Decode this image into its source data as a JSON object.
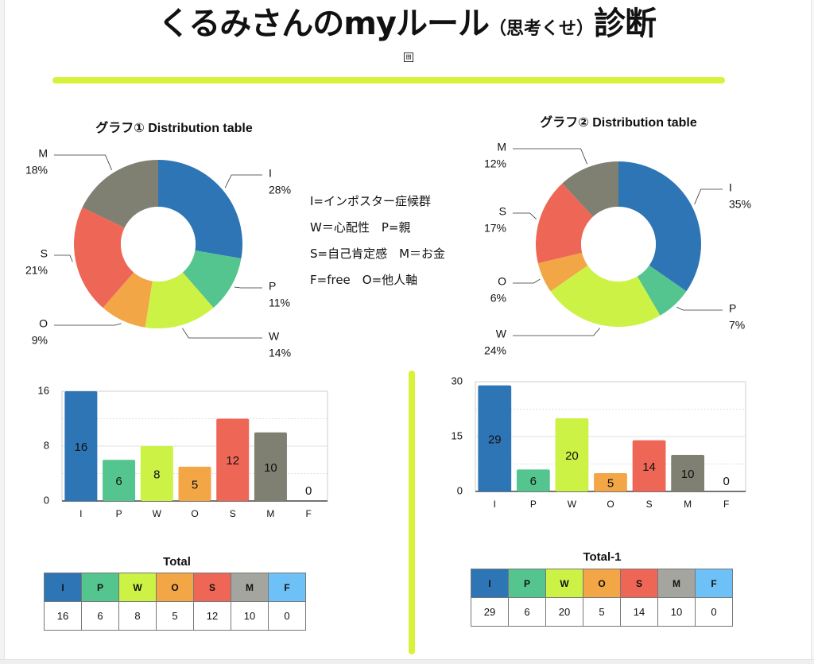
{
  "title": {
    "main": "くるみさんのmyルール",
    "paren": "（思考くせ）",
    "suffix": "診断"
  },
  "expand_icon": "⊞",
  "legend_lines": [
    "I=インポスター症候群",
    "W＝心配性　P=親",
    "S=自己肯定感　M＝お金",
    "F=free　O=他人軸"
  ],
  "colors": {
    "I": "#2e75b6",
    "P": "#55c58f",
    "W": "#ccf246",
    "O": "#f2a646",
    "S": "#ee6756",
    "M": "#7f7f72",
    "F": "#6ec1f7",
    "accent": "#d8f23a"
  },
  "chart_data": [
    {
      "type": "pie",
      "title": "グラフ① Distribution table",
      "slices": [
        {
          "label": "I",
          "value": 28,
          "pct": "28%"
        },
        {
          "label": "P",
          "value": 11,
          "pct": "11%"
        },
        {
          "label": "W",
          "value": 14,
          "pct": "14%"
        },
        {
          "label": "O",
          "value": 9,
          "pct": "9%"
        },
        {
          "label": "S",
          "value": 21,
          "pct": "21%"
        },
        {
          "label": "M",
          "value": 18,
          "pct": "18%"
        }
      ]
    },
    {
      "type": "pie",
      "title": "グラフ② Distribution table",
      "slices": [
        {
          "label": "I",
          "value": 35,
          "pct": "35%"
        },
        {
          "label": "P",
          "value": 7,
          "pct": "7%"
        },
        {
          "label": "W",
          "value": 24,
          "pct": "24%"
        },
        {
          "label": "O",
          "value": 6,
          "pct": "6%"
        },
        {
          "label": "S",
          "value": 17,
          "pct": "17%"
        },
        {
          "label": "M",
          "value": 12,
          "pct": "12%"
        }
      ]
    },
    {
      "type": "bar",
      "categories": [
        "I",
        "P",
        "W",
        "O",
        "S",
        "M",
        "F"
      ],
      "values": [
        16,
        6,
        8,
        5,
        12,
        10,
        0
      ],
      "ylim": [
        0,
        16
      ],
      "yticks": [
        "0",
        "8",
        "16"
      ],
      "grid": true
    },
    {
      "type": "bar",
      "categories": [
        "I",
        "P",
        "W",
        "O",
        "S",
        "M",
        "F"
      ],
      "values": [
        29,
        6,
        20,
        5,
        14,
        10,
        0
      ],
      "ylim": [
        0,
        30
      ],
      "yticks": [
        "0",
        "15",
        "30"
      ],
      "grid": true
    },
    {
      "type": "table",
      "title": "Total",
      "columns": [
        "I",
        "P",
        "W",
        "O",
        "S",
        "M",
        "F"
      ],
      "values": [
        "16",
        "6",
        "8",
        "5",
        "12",
        "10",
        "0"
      ]
    },
    {
      "type": "table",
      "title": "Total-1",
      "columns": [
        "I",
        "P",
        "W",
        "O",
        "S",
        "M",
        "F"
      ],
      "values": [
        "29",
        "6",
        "20",
        "5",
        "14",
        "10",
        "0"
      ]
    }
  ]
}
